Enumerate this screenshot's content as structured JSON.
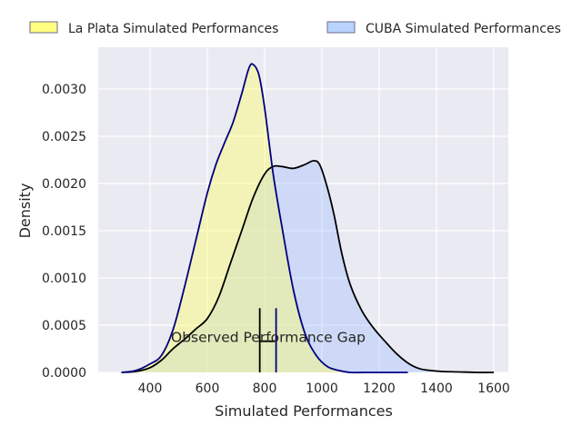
{
  "chart_data": {
    "type": "area",
    "title": "",
    "xlabel": "Simulated Performances",
    "ylabel": "Density",
    "xlim": [
      220,
      1650
    ],
    "ylim": [
      0,
      0.00345
    ],
    "xticks": [
      400,
      600,
      800,
      1000,
      1200,
      1400,
      1600
    ],
    "xtick_labels": [
      "400",
      "600",
      "800",
      "1000",
      "1200",
      "1400",
      "1600"
    ],
    "yticks": [
      0,
      0.0005,
      0.001,
      0.0015,
      0.002,
      0.0025,
      0.003
    ],
    "ytick_labels": [
      "0.0000",
      "0.0005",
      "0.0010",
      "0.0015",
      "0.0020",
      "0.0025",
      "0.0030"
    ],
    "grid": true,
    "legend": {
      "placement": "top",
      "columns": 2
    },
    "series": [
      {
        "name": "La Plata Simulated Performances",
        "fill": "#ffff66",
        "line": "#000080",
        "x": [
          300,
          350,
          400,
          440,
          480,
          520,
          560,
          600,
          630,
          660,
          690,
          720,
          745,
          760,
          780,
          800,
          830,
          860,
          900,
          940,
          980,
          1020,
          1060,
          1100,
          1150,
          1200,
          1250,
          1300
        ],
        "y": [
          0.0,
          2e-05,
          9e-05,
          0.00018,
          0.00045,
          0.0009,
          0.0014,
          0.0019,
          0.0022,
          0.00243,
          0.00265,
          0.00295,
          0.00322,
          0.00326,
          0.00315,
          0.0028,
          0.0021,
          0.00155,
          0.00088,
          0.00042,
          0.00018,
          6e-05,
          2e-05,
          0.0,
          0.0,
          0.0,
          0.0,
          0.0
        ]
      },
      {
        "name": "CUBA Simulated Performances",
        "fill": "#99bbff",
        "line": "#000000",
        "x": [
          300,
          350,
          400,
          440,
          480,
          520,
          560,
          600,
          640,
          680,
          720,
          760,
          800,
          830,
          860,
          900,
          940,
          970,
          990,
          1010,
          1040,
          1070,
          1100,
          1140,
          1180,
          1220,
          1260,
          1300,
          1340,
          1380,
          1420,
          1480,
          1540,
          1600
        ],
        "y": [
          0.0,
          1e-05,
          5e-05,
          0.00013,
          0.00025,
          0.00035,
          0.00046,
          0.00057,
          0.0008,
          0.00115,
          0.0015,
          0.00185,
          0.0021,
          0.00218,
          0.00218,
          0.00216,
          0.0022,
          0.00224,
          0.00221,
          0.00205,
          0.0017,
          0.00125,
          0.00092,
          0.00065,
          0.00047,
          0.00033,
          0.0002,
          0.0001,
          4e-05,
          2e-05,
          1e-05,
          5e-06,
          0.0,
          0.0
        ]
      }
    ],
    "annotations": [
      {
        "text": "Observed Performance Gap",
        "x": 620,
        "y": 0.00038
      }
    ],
    "gap_bracket": {
      "left_x": 783,
      "right_x": 840,
      "top_y": 0.00068,
      "bar_y": 0.00033,
      "left_color": "#000000",
      "right_color": "#000080"
    }
  },
  "style": {
    "plot_bg": "#eaeaf2",
    "grid": "#ffffff",
    "legend_yellow": "#ffff80",
    "legend_blue": "#b8d4ff"
  }
}
